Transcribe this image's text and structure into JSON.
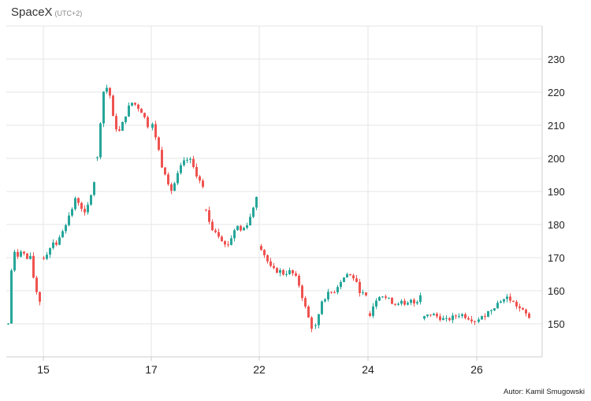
{
  "header": {
    "title": "SpaceX",
    "subtitle": "(UTC+2)"
  },
  "credit": "Autor: Kamil Smugowski",
  "colors": {
    "up": "#26a69a",
    "down": "#ef5350",
    "grid": "#e6e6e6",
    "axis": "#cccccc"
  },
  "chart_data": {
    "type": "candlestick",
    "title": "SpaceX",
    "subtitle": "(UTC+2)",
    "xlabel": "",
    "ylabel": "",
    "x_tick_labels": [
      "15",
      "17",
      "22",
      "24",
      "26"
    ],
    "y_tick_labels": [
      "150",
      "160",
      "170",
      "180",
      "190",
      "200",
      "210",
      "220",
      "230"
    ],
    "ylim": [
      140,
      240
    ],
    "grid": true,
    "sessions": [
      {
        "day": "14",
        "points": [
          150,
          168,
          172,
          170,
          174,
          168,
          172,
          165,
          160,
          157
        ]
      },
      {
        "day": "15",
        "points": [
          170,
          172,
          175,
          174,
          178,
          181,
          184,
          188,
          186,
          183,
          187,
          193
        ]
      },
      {
        "day": "16",
        "points": [
          200,
          220,
          222,
          210,
          208,
          213,
          217,
          216,
          214,
          210
        ]
      },
      {
        "day": "17",
        "points": [
          210,
          205,
          198,
          195,
          190,
          193,
          197,
          199,
          200,
          197,
          194,
          191
        ]
      },
      {
        "day": "20",
        "points": [
          184,
          179,
          178,
          176,
          173,
          176,
          180,
          178,
          180,
          183,
          189
        ]
      },
      {
        "day": "22",
        "points": [
          173,
          170,
          167,
          166,
          166,
          165,
          166,
          165,
          163,
          158,
          153,
          149
        ]
      },
      {
        "day": "23",
        "points": [
          149,
          157,
          159,
          160,
          163,
          165,
          164,
          160,
          158
        ]
      },
      {
        "day": "24",
        "points": [
          153,
          157,
          159,
          158,
          157,
          156,
          157,
          155,
          157,
          156,
          159
        ]
      },
      {
        "day": "25",
        "points": [
          152,
          153,
          152,
          151,
          152,
          153,
          152,
          151
        ]
      },
      {
        "day": "26",
        "points": [
          151,
          153,
          155,
          157,
          158,
          156,
          154,
          152
        ]
      }
    ]
  }
}
